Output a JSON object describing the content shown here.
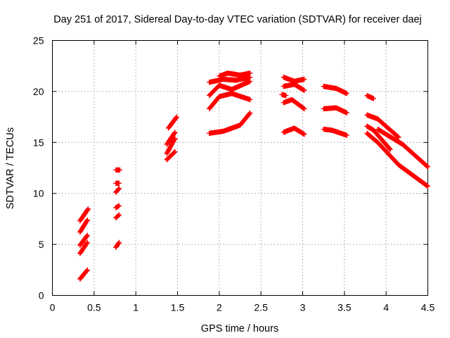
{
  "chart_data": {
    "type": "scatter",
    "title": "Day 251 of 2017, Sidereal Day-to-day VTEC variation (SDTVAR) for receiver daej",
    "xlabel": "GPS time / hours",
    "ylabel": "SDTVAR / TECUs",
    "xlim": [
      0,
      4.5
    ],
    "ylim": [
      0,
      25
    ],
    "xticks": [
      0,
      0.5,
      1,
      1.5,
      2,
      2.5,
      3,
      3.5,
      4,
      4.5
    ],
    "xtick_labels": [
      "0",
      "0.5",
      "1",
      "1.5",
      "2",
      "2.5",
      "3",
      "3.5",
      "4",
      "4.5"
    ],
    "yticks": [
      0,
      5,
      10,
      15,
      20,
      25
    ],
    "ytick_labels": [
      "0",
      "5",
      "10",
      "15",
      "20",
      "25"
    ],
    "grid": true,
    "marker": "plus",
    "color": "#ff0000",
    "segments": [
      {
        "x": [
          0.33,
          0.42
        ],
        "y": [
          1.6,
          2.5
        ]
      },
      {
        "x": [
          0.33,
          0.42
        ],
        "y": [
          4.1,
          5.2
        ]
      },
      {
        "x": [
          0.33,
          0.42
        ],
        "y": [
          4.9,
          5.9
        ]
      },
      {
        "x": [
          0.33,
          0.42
        ],
        "y": [
          6.2,
          7.4
        ]
      },
      {
        "x": [
          0.33,
          0.43
        ],
        "y": [
          7.3,
          8.5
        ]
      },
      {
        "x": [
          0.76,
          0.8
        ],
        "y": [
          4.7,
          5.2
        ]
      },
      {
        "x": [
          0.76,
          0.8
        ],
        "y": [
          7.6,
          7.9
        ]
      },
      {
        "x": [
          0.76,
          0.8
        ],
        "y": [
          8.6,
          8.8
        ]
      },
      {
        "x": [
          0.76,
          0.8
        ],
        "y": [
          10.1,
          10.5
        ]
      },
      {
        "x": [
          0.76,
          0.8
        ],
        "y": [
          11.0,
          11.0
        ]
      },
      {
        "x": [
          0.76,
          0.81
        ],
        "y": [
          12.3,
          12.3
        ]
      },
      {
        "x": [
          1.37,
          1.47
        ],
        "y": [
          13.3,
          14.1
        ]
      },
      {
        "x": [
          1.37,
          1.47
        ],
        "y": [
          13.9,
          15.4
        ]
      },
      {
        "x": [
          1.37,
          1.47
        ],
        "y": [
          14.8,
          16.0
        ]
      },
      {
        "x": [
          1.39,
          1.49
        ],
        "y": [
          16.4,
          17.5
        ]
      },
      {
        "x": [
          1.88,
          2.05,
          2.25,
          2.37
        ],
        "y": [
          15.9,
          16.1,
          16.7,
          17.9
        ]
      },
      {
        "x": [
          1.88,
          2.0,
          2.15,
          2.37
        ],
        "y": [
          18.3,
          19.5,
          19.8,
          19.2
        ]
      },
      {
        "x": [
          1.88,
          2.0,
          2.15,
          2.37
        ],
        "y": [
          19.6,
          20.6,
          20.2,
          21.0
        ]
      },
      {
        "x": [
          1.88,
          2.05,
          2.2,
          2.37
        ],
        "y": [
          20.9,
          21.2,
          21.1,
          21.4
        ]
      },
      {
        "x": [
          2.0,
          2.1,
          2.25,
          2.37
        ],
        "y": [
          21.5,
          21.8,
          21.6,
          21.8
        ]
      },
      {
        "x": [
          2.75,
          2.8
        ],
        "y": [
          19.7,
          19.6
        ]
      },
      {
        "x": [
          2.77,
          2.9,
          3.02
        ],
        "y": [
          16.0,
          16.4,
          15.8
        ]
      },
      {
        "x": [
          2.77,
          2.87,
          3.02
        ],
        "y": [
          18.9,
          19.2,
          18.3
        ]
      },
      {
        "x": [
          2.77,
          2.9,
          3.02
        ],
        "y": [
          20.5,
          20.7,
          20.1
        ]
      },
      {
        "x": [
          2.77,
          2.9,
          3.02
        ],
        "y": [
          21.4,
          21.0,
          21.2
        ]
      },
      {
        "x": [
          3.25,
          3.35,
          3.53
        ],
        "y": [
          16.3,
          16.2,
          15.7
        ]
      },
      {
        "x": [
          3.25,
          3.4,
          3.53
        ],
        "y": [
          18.3,
          18.4,
          17.9
        ]
      },
      {
        "x": [
          3.25,
          3.4,
          3.53
        ],
        "y": [
          20.5,
          20.3,
          19.8
        ]
      },
      {
        "x": [
          3.77,
          3.85
        ],
        "y": [
          19.6,
          19.3
        ]
      },
      {
        "x": [
          3.77,
          3.9,
          4.15
        ],
        "y": [
          17.7,
          17.3,
          15.5
        ]
      },
      {
        "x": [
          3.77,
          3.85,
          4.05
        ],
        "y": [
          16.6,
          16.2,
          14.3
        ]
      },
      {
        "x": [
          3.77,
          3.9,
          4.15,
          4.5
        ],
        "y": [
          15.9,
          15.0,
          12.8,
          10.7
        ]
      },
      {
        "x": [
          3.9,
          4.2,
          4.5
        ],
        "y": [
          16.3,
          14.8,
          12.6
        ]
      }
    ]
  }
}
